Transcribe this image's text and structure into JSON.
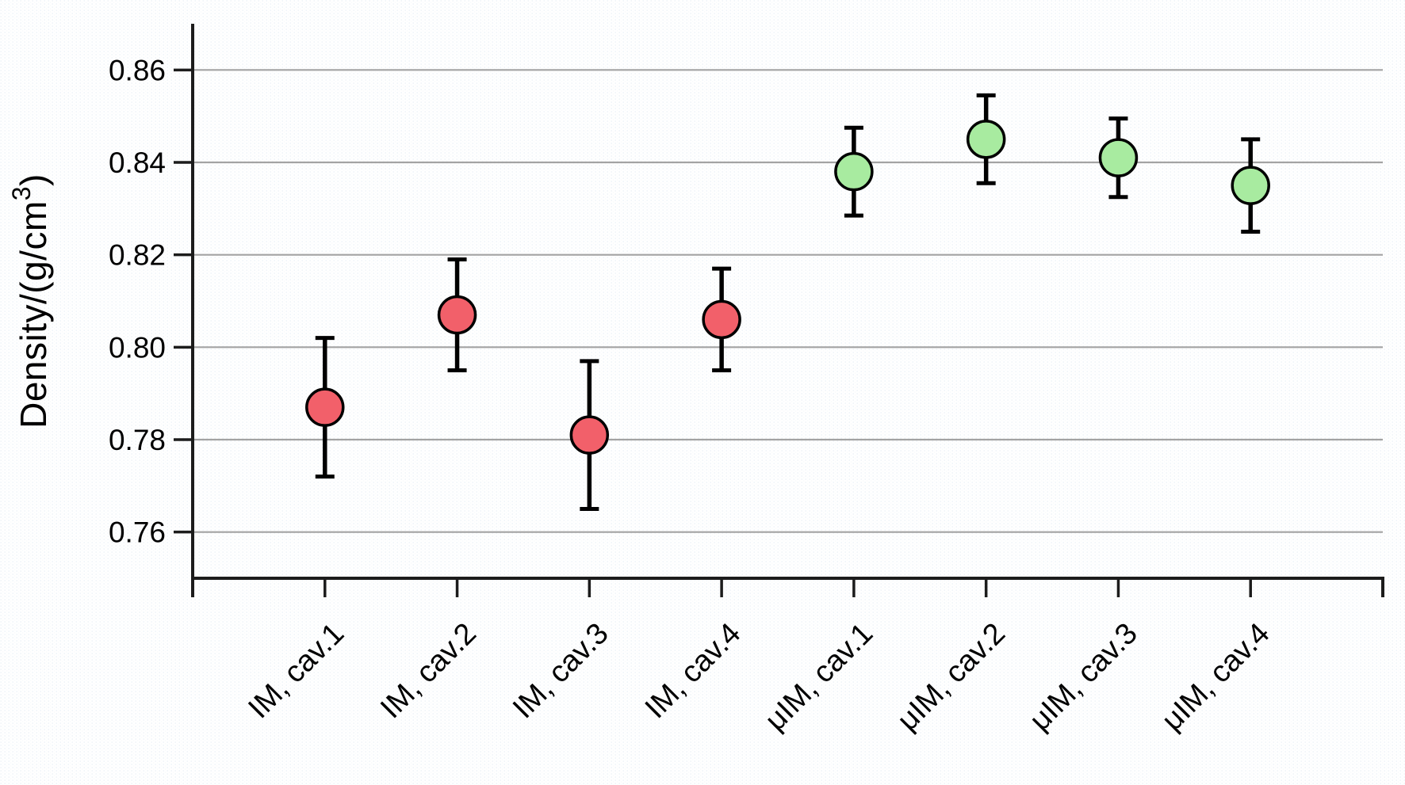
{
  "chart_data": {
    "type": "scatter",
    "title": "",
    "xlabel": "",
    "ylabel_prefix": "Density/(g/cm",
    "ylabel_superscript": "3",
    "ylabel_suffix": ")",
    "categories": [
      "IM, cav.1",
      "IM, cav.2",
      "IM, cav.3",
      "IM, cav.4",
      "μIM, cav.1",
      "μIM, cav.2",
      "μIM, cav.3",
      "μIM, cav.4"
    ],
    "values": [
      0.787,
      0.807,
      0.781,
      0.806,
      0.838,
      0.845,
      0.841,
      0.835
    ],
    "errors_plus": [
      0.015,
      0.012,
      0.016,
      0.011,
      0.0095,
      0.0095,
      0.0085,
      0.01
    ],
    "errors_minus": [
      0.015,
      0.012,
      0.016,
      0.011,
      0.0095,
      0.0095,
      0.0085,
      0.01
    ],
    "groups": [
      "IM",
      "IM",
      "IM",
      "IM",
      "μIM",
      "μIM",
      "μIM",
      "μIM"
    ],
    "group_colors": {
      "IM": "#f2606a",
      "μIM": "#a8eba0"
    },
    "marker_outline_color": "#000000",
    "errorbar_color": "#000000",
    "yticks": [
      {
        "value": 0.76,
        "label": "0.76"
      },
      {
        "value": 0.78,
        "label": "0.78"
      },
      {
        "value": 0.8,
        "label": "0.80"
      },
      {
        "value": 0.82,
        "label": "0.82"
      },
      {
        "value": 0.84,
        "label": "0.84"
      },
      {
        "value": 0.86,
        "label": "0.86"
      }
    ],
    "ylim": [
      0.75,
      0.87
    ],
    "grid": {
      "horizontal": "major",
      "vertical": "none",
      "color": "#a3a3a3"
    },
    "axis_color": "#1c1c1c",
    "legend_position": "none",
    "background_color": "#ffffff",
    "background_dot_colors": [
      "#d3e1ec",
      "#e8eff5"
    ]
  }
}
